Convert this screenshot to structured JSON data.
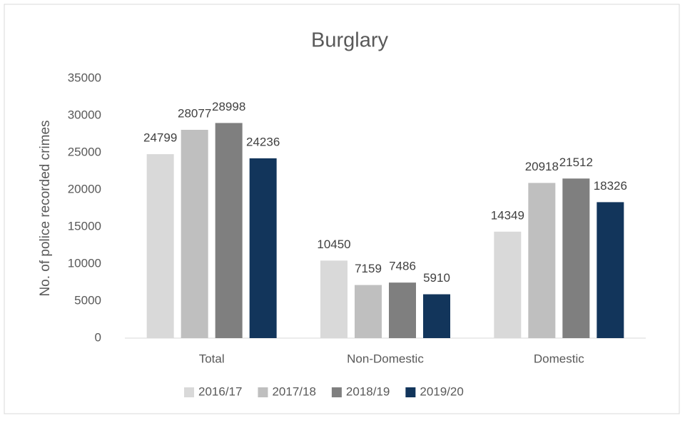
{
  "chart_data": {
    "type": "bar",
    "title": "Burglary",
    "y_label": "No. of police recorded crimes",
    "categories": [
      "Total",
      "Non-Domestic",
      "Domestic"
    ],
    "series": [
      {
        "name": "2016/17",
        "color": "#d9d9d9",
        "values": [
          24799,
          10450,
          14349
        ]
      },
      {
        "name": "2017/18",
        "color": "#bfbfbf",
        "values": [
          28077,
          7159,
          20918
        ]
      },
      {
        "name": "2018/19",
        "color": "#7f7f7f",
        "values": [
          28998,
          7486,
          21512
        ]
      },
      {
        "name": "2019/20",
        "color": "#12355b",
        "values": [
          24236,
          5910,
          18326
        ]
      }
    ],
    "ylim": [
      0,
      35000
    ],
    "yticks": [
      0,
      5000,
      10000,
      15000,
      20000,
      25000,
      30000,
      35000
    ],
    "grid": false,
    "legend": "bottom"
  }
}
